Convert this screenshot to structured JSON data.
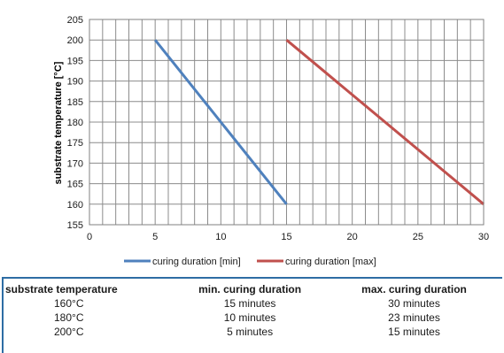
{
  "chart_data": {
    "type": "line",
    "title": "",
    "xlabel": "",
    "ylabel": "substrate temperature [°C]",
    "xlim": [
      0,
      30
    ],
    "ylim": [
      155,
      205
    ],
    "x_ticks": [
      0,
      5,
      10,
      15,
      20,
      25,
      30
    ],
    "y_ticks": [
      155,
      160,
      165,
      170,
      175,
      180,
      185,
      190,
      195,
      200,
      205
    ],
    "x_minor_step": 1,
    "grid": true,
    "legend_position": "bottom",
    "series": [
      {
        "name": "curing duration [min]",
        "color": "#4f81bd",
        "points": [
          [
            5,
            200
          ],
          [
            15,
            160
          ]
        ]
      },
      {
        "name": "curing duration [max]",
        "color": "#c0504d",
        "points": [
          [
            15,
            200
          ],
          [
            30,
            160
          ]
        ]
      }
    ]
  },
  "table": {
    "headers": [
      "substrate temperature",
      "min. curing duration",
      "max. curing duration"
    ],
    "rows": [
      [
        "160°C",
        "15 minutes",
        "30 minutes"
      ],
      [
        "180°C",
        "10 minutes",
        "23 minutes"
      ],
      [
        "200°C",
        "5 minutes",
        "15 minutes"
      ]
    ]
  }
}
